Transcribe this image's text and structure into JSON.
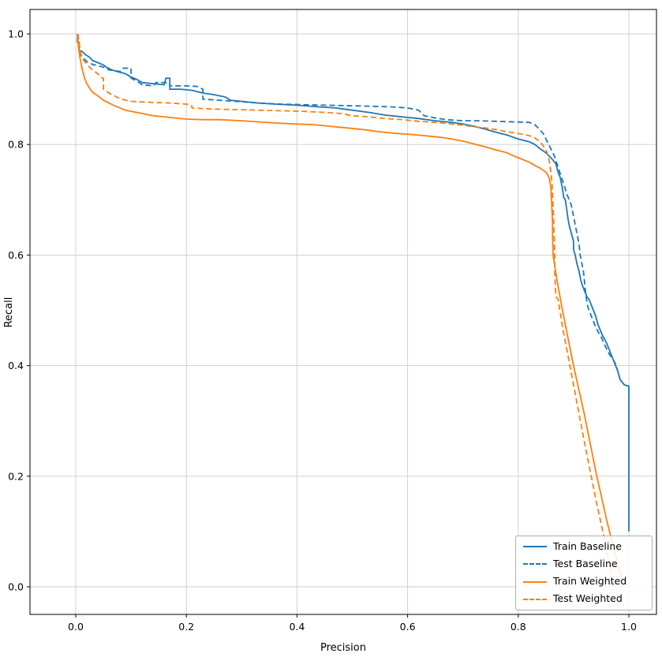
{
  "chart_data": {
    "type": "line",
    "title": "",
    "xlabel": "Precision",
    "ylabel": "Recall",
    "xlim": [
      -0.08,
      1.05
    ],
    "ylim": [
      -0.05,
      1.05
    ],
    "grid": true,
    "legend_position": "lower right",
    "x_ticks": [
      0.0,
      0.2,
      0.4,
      0.6,
      0.8,
      1.0
    ],
    "y_ticks": [
      0.0,
      0.2,
      0.4,
      0.6,
      0.8,
      1.0
    ],
    "x_tick_labels": [
      "0.0",
      "0.2",
      "0.4",
      "0.6",
      "0.8",
      "1.0"
    ],
    "y_tick_labels": [
      "0.0",
      "0.2",
      "0.4",
      "0.6",
      "0.8",
      "1.0"
    ],
    "series": [
      {
        "name": "Train Baseline",
        "color": "#1f77b4",
        "style": "solid",
        "points": [
          [
            0.003,
            1.0
          ],
          [
            0.003,
            0.985
          ],
          [
            0.006,
            0.985
          ],
          [
            0.006,
            0.97
          ],
          [
            0.012,
            0.968
          ],
          [
            0.018,
            0.962
          ],
          [
            0.025,
            0.958
          ],
          [
            0.03,
            0.952
          ],
          [
            0.04,
            0.948
          ],
          [
            0.05,
            0.944
          ],
          [
            0.055,
            0.94
          ],
          [
            0.065,
            0.935
          ],
          [
            0.075,
            0.932
          ],
          [
            0.09,
            0.928
          ],
          [
            0.1,
            0.922
          ],
          [
            0.11,
            0.918
          ],
          [
            0.12,
            0.912
          ],
          [
            0.14,
            0.91
          ],
          [
            0.16,
            0.908
          ],
          [
            0.163,
            0.92
          ],
          [
            0.17,
            0.92
          ],
          [
            0.17,
            0.9
          ],
          [
            0.19,
            0.9
          ],
          [
            0.21,
            0.898
          ],
          [
            0.23,
            0.893
          ],
          [
            0.25,
            0.89
          ],
          [
            0.27,
            0.886
          ],
          [
            0.28,
            0.88
          ],
          [
            0.3,
            0.878
          ],
          [
            0.33,
            0.875
          ],
          [
            0.36,
            0.873
          ],
          [
            0.4,
            0.871
          ],
          [
            0.44,
            0.868
          ],
          [
            0.47,
            0.866
          ],
          [
            0.5,
            0.862
          ],
          [
            0.53,
            0.858
          ],
          [
            0.56,
            0.853
          ],
          [
            0.59,
            0.85
          ],
          [
            0.62,
            0.847
          ],
          [
            0.65,
            0.843
          ],
          [
            0.68,
            0.84
          ],
          [
            0.7,
            0.837
          ],
          [
            0.72,
            0.833
          ],
          [
            0.74,
            0.828
          ],
          [
            0.76,
            0.822
          ],
          [
            0.78,
            0.817
          ],
          [
            0.8,
            0.81
          ],
          [
            0.82,
            0.805
          ],
          [
            0.83,
            0.8
          ],
          [
            0.84,
            0.792
          ],
          [
            0.85,
            0.785
          ],
          [
            0.86,
            0.775
          ],
          [
            0.868,
            0.765
          ],
          [
            0.872,
            0.75
          ],
          [
            0.876,
            0.74
          ],
          [
            0.88,
            0.72
          ],
          [
            0.882,
            0.705
          ],
          [
            0.885,
            0.7
          ],
          [
            0.888,
            0.68
          ],
          [
            0.89,
            0.665
          ],
          [
            0.893,
            0.65
          ],
          [
            0.896,
            0.64
          ],
          [
            0.9,
            0.625
          ],
          [
            0.9,
            0.61
          ],
          [
            0.903,
            0.6
          ],
          [
            0.906,
            0.585
          ],
          [
            0.91,
            0.57
          ],
          [
            0.913,
            0.555
          ],
          [
            0.916,
            0.545
          ],
          [
            0.92,
            0.535
          ],
          [
            0.924,
            0.525
          ],
          [
            0.928,
            0.52
          ],
          [
            0.932,
            0.51
          ],
          [
            0.936,
            0.5
          ],
          [
            0.94,
            0.49
          ],
          [
            0.944,
            0.475
          ],
          [
            0.948,
            0.465
          ],
          [
            0.952,
            0.455
          ],
          [
            0.956,
            0.448
          ],
          [
            0.96,
            0.44
          ],
          [
            0.964,
            0.43
          ],
          [
            0.968,
            0.42
          ],
          [
            0.972,
            0.41
          ],
          [
            0.976,
            0.4
          ],
          [
            0.98,
            0.39
          ],
          [
            0.984,
            0.375
          ],
          [
            0.988,
            0.37
          ],
          [
            0.992,
            0.365
          ],
          [
            1.0,
            0.363
          ],
          [
            1.0,
            0.1
          ]
        ]
      },
      {
        "name": "Test Baseline",
        "color": "#1f77b4",
        "style": "dashed",
        "points": [
          [
            0.004,
            1.0
          ],
          [
            0.006,
            0.975
          ],
          [
            0.01,
            0.96
          ],
          [
            0.02,
            0.95
          ],
          [
            0.03,
            0.945
          ],
          [
            0.05,
            0.94
          ],
          [
            0.06,
            0.935
          ],
          [
            0.08,
            0.932
          ],
          [
            0.085,
            0.938
          ],
          [
            0.1,
            0.938
          ],
          [
            0.1,
            0.92
          ],
          [
            0.11,
            0.915
          ],
          [
            0.12,
            0.908
          ],
          [
            0.14,
            0.906
          ],
          [
            0.145,
            0.912
          ],
          [
            0.17,
            0.912
          ],
          [
            0.17,
            0.906
          ],
          [
            0.2,
            0.906
          ],
          [
            0.22,
            0.905
          ],
          [
            0.23,
            0.9
          ],
          [
            0.23,
            0.882
          ],
          [
            0.26,
            0.88
          ],
          [
            0.29,
            0.878
          ],
          [
            0.33,
            0.875
          ],
          [
            0.37,
            0.873
          ],
          [
            0.41,
            0.872
          ],
          [
            0.45,
            0.871
          ],
          [
            0.5,
            0.87
          ],
          [
            0.54,
            0.869
          ],
          [
            0.57,
            0.868
          ],
          [
            0.6,
            0.866
          ],
          [
            0.62,
            0.862
          ],
          [
            0.63,
            0.852
          ],
          [
            0.65,
            0.848
          ],
          [
            0.67,
            0.845
          ],
          [
            0.7,
            0.843
          ],
          [
            0.73,
            0.843
          ],
          [
            0.76,
            0.842
          ],
          [
            0.79,
            0.841
          ],
          [
            0.82,
            0.84
          ],
          [
            0.83,
            0.836
          ],
          [
            0.838,
            0.828
          ],
          [
            0.845,
            0.82
          ],
          [
            0.85,
            0.81
          ],
          [
            0.855,
            0.8
          ],
          [
            0.86,
            0.79
          ],
          [
            0.865,
            0.78
          ],
          [
            0.87,
            0.765
          ],
          [
            0.875,
            0.75
          ],
          [
            0.88,
            0.735
          ],
          [
            0.885,
            0.72
          ],
          [
            0.888,
            0.71
          ],
          [
            0.892,
            0.7
          ],
          [
            0.896,
            0.69
          ],
          [
            0.9,
            0.67
          ],
          [
            0.903,
            0.655
          ],
          [
            0.906,
            0.64
          ],
          [
            0.91,
            0.62
          ],
          [
            0.912,
            0.6
          ],
          [
            0.915,
            0.585
          ],
          [
            0.918,
            0.57
          ],
          [
            0.92,
            0.55
          ],
          [
            0.922,
            0.53
          ],
          [
            0.925,
            0.51
          ],
          [
            0.928,
            0.5
          ],
          [
            0.932,
            0.49
          ],
          [
            0.936,
            0.48
          ],
          [
            0.94,
            0.47
          ],
          [
            0.945,
            0.46
          ],
          [
            0.95,
            0.452
          ],
          [
            0.955,
            0.44
          ],
          [
            0.96,
            0.43
          ],
          [
            0.965,
            0.42
          ],
          [
            0.97,
            0.413
          ],
          [
            0.975,
            0.405
          ],
          [
            0.98,
            0.39
          ],
          [
            0.983,
            0.38
          ]
        ]
      },
      {
        "name": "Train Weighted",
        "color": "#ff7f0e",
        "style": "solid",
        "points": [
          [
            0.003,
            1.0
          ],
          [
            0.005,
            0.975
          ],
          [
            0.008,
            0.955
          ],
          [
            0.012,
            0.935
          ],
          [
            0.016,
            0.92
          ],
          [
            0.02,
            0.91
          ],
          [
            0.025,
            0.902
          ],
          [
            0.03,
            0.895
          ],
          [
            0.04,
            0.888
          ],
          [
            0.05,
            0.88
          ],
          [
            0.06,
            0.875
          ],
          [
            0.07,
            0.87
          ],
          [
            0.08,
            0.866
          ],
          [
            0.09,
            0.862
          ],
          [
            0.1,
            0.86
          ],
          [
            0.12,
            0.856
          ],
          [
            0.14,
            0.852
          ],
          [
            0.16,
            0.85
          ],
          [
            0.18,
            0.848
          ],
          [
            0.2,
            0.846
          ],
          [
            0.23,
            0.845
          ],
          [
            0.26,
            0.845
          ],
          [
            0.3,
            0.843
          ],
          [
            0.33,
            0.841
          ],
          [
            0.36,
            0.839
          ],
          [
            0.4,
            0.837
          ],
          [
            0.43,
            0.836
          ],
          [
            0.46,
            0.833
          ],
          [
            0.49,
            0.83
          ],
          [
            0.52,
            0.827
          ],
          [
            0.55,
            0.823
          ],
          [
            0.58,
            0.82
          ],
          [
            0.61,
            0.818
          ],
          [
            0.64,
            0.815
          ],
          [
            0.66,
            0.813
          ],
          [
            0.68,
            0.81
          ],
          [
            0.7,
            0.806
          ],
          [
            0.72,
            0.801
          ],
          [
            0.74,
            0.796
          ],
          [
            0.76,
            0.79
          ],
          [
            0.78,
            0.785
          ],
          [
            0.79,
            0.78
          ],
          [
            0.8,
            0.776
          ],
          [
            0.81,
            0.772
          ],
          [
            0.82,
            0.768
          ],
          [
            0.83,
            0.762
          ],
          [
            0.84,
            0.757
          ],
          [
            0.85,
            0.75
          ],
          [
            0.854,
            0.744
          ],
          [
            0.857,
            0.735
          ],
          [
            0.859,
            0.72
          ],
          [
            0.86,
            0.7
          ],
          [
            0.861,
            0.68
          ],
          [
            0.862,
            0.66
          ],
          [
            0.862,
            0.63
          ],
          [
            0.863,
            0.61
          ],
          [
            0.863,
            0.6
          ],
          [
            0.87,
            0.555
          ],
          [
            0.88,
            0.5
          ],
          [
            0.9,
            0.4
          ],
          [
            0.92,
            0.31
          ],
          [
            0.94,
            0.21
          ],
          [
            0.96,
            0.12
          ],
          [
            0.98,
            0.04
          ],
          [
            0.988,
            0.01
          ]
        ]
      },
      {
        "name": "Test Weighted",
        "color": "#ff7f0e",
        "style": "dashed",
        "points": [
          [
            0.004,
            1.0
          ],
          [
            0.008,
            0.97
          ],
          [
            0.012,
            0.955
          ],
          [
            0.02,
            0.945
          ],
          [
            0.03,
            0.935
          ],
          [
            0.04,
            0.928
          ],
          [
            0.045,
            0.922
          ],
          [
            0.05,
            0.92
          ],
          [
            0.05,
            0.9
          ],
          [
            0.06,
            0.893
          ],
          [
            0.07,
            0.888
          ],
          [
            0.08,
            0.883
          ],
          [
            0.09,
            0.88
          ],
          [
            0.1,
            0.878
          ],
          [
            0.12,
            0.877
          ],
          [
            0.14,
            0.876
          ],
          [
            0.17,
            0.875
          ],
          [
            0.2,
            0.873
          ],
          [
            0.21,
            0.87
          ],
          [
            0.21,
            0.866
          ],
          [
            0.25,
            0.864
          ],
          [
            0.29,
            0.863
          ],
          [
            0.33,
            0.862
          ],
          [
            0.37,
            0.861
          ],
          [
            0.41,
            0.86
          ],
          [
            0.45,
            0.858
          ],
          [
            0.48,
            0.856
          ],
          [
            0.5,
            0.852
          ],
          [
            0.53,
            0.85
          ],
          [
            0.56,
            0.847
          ],
          [
            0.59,
            0.845
          ],
          [
            0.62,
            0.842
          ],
          [
            0.65,
            0.84
          ],
          [
            0.68,
            0.837
          ],
          [
            0.7,
            0.835
          ],
          [
            0.72,
            0.832
          ],
          [
            0.74,
            0.83
          ],
          [
            0.76,
            0.827
          ],
          [
            0.78,
            0.823
          ],
          [
            0.8,
            0.82
          ],
          [
            0.82,
            0.816
          ],
          [
            0.83,
            0.812
          ],
          [
            0.838,
            0.806
          ],
          [
            0.845,
            0.798
          ],
          [
            0.85,
            0.79
          ],
          [
            0.854,
            0.78
          ],
          [
            0.857,
            0.765
          ],
          [
            0.859,
            0.75
          ],
          [
            0.861,
            0.73
          ],
          [
            0.862,
            0.71
          ],
          [
            0.863,
            0.69
          ],
          [
            0.864,
            0.66
          ],
          [
            0.865,
            0.63
          ],
          [
            0.866,
            0.6
          ],
          [
            0.866,
            0.57
          ],
          [
            0.867,
            0.545
          ],
          [
            0.868,
            0.525
          ],
          [
            0.872,
            0.52
          ],
          [
            0.88,
            0.47
          ],
          [
            0.9,
            0.365
          ],
          [
            0.92,
            0.26
          ],
          [
            0.94,
            0.16
          ],
          [
            0.955,
            0.09
          ],
          [
            0.97,
            0.02
          ]
        ]
      }
    ]
  }
}
